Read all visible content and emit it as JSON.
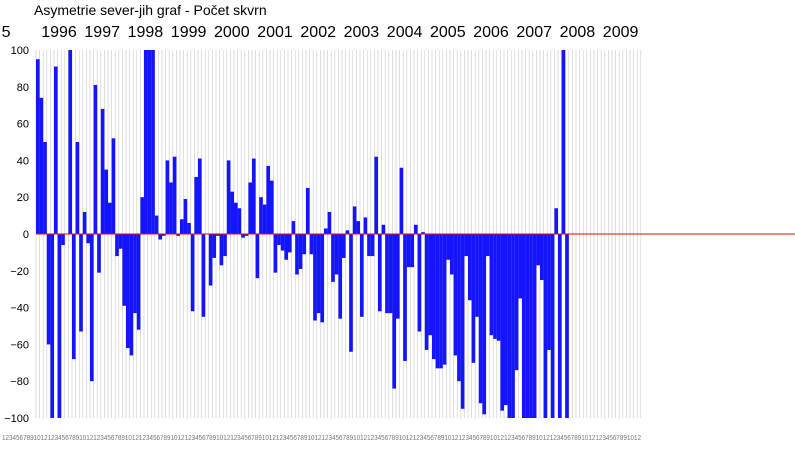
{
  "chart_data": {
    "type": "bar",
    "title": "Asymetrie  sever-jih   graf  -  Počet skvrn",
    "year_labels": [
      {
        "label": "5",
        "month_index": -9
      },
      {
        "label": "1996",
        "month_index": 2
      },
      {
        "label": "1997",
        "month_index": 14
      },
      {
        "label": "1998",
        "month_index": 26
      },
      {
        "label": "1999",
        "month_index": 38
      },
      {
        "label": "2000",
        "month_index": 50
      },
      {
        "label": "2001",
        "month_index": 62
      },
      {
        "label": "2002",
        "month_index": 74
      },
      {
        "label": "2003",
        "month_index": 86
      },
      {
        "label": "2004",
        "month_index": 98
      },
      {
        "label": "2005",
        "month_index": 110
      },
      {
        "label": "2006",
        "month_index": 122
      },
      {
        "label": "2007",
        "month_index": 134
      },
      {
        "label": "2008",
        "month_index": 146
      },
      {
        "label": "2009",
        "month_index": 158
      }
    ],
    "ylim": [
      -100,
      100
    ],
    "yticks": [
      100,
      80,
      60,
      40,
      20,
      0,
      -20,
      -40,
      -60,
      -80,
      -100
    ],
    "months_total": 168,
    "grid": "vertical per month",
    "month_tick_labels": "1 2 3 4 5 6 7 8 9 10 11 12 (repeated, overlapping)",
    "series": [
      {
        "values": [
          95,
          74,
          50,
          -60,
          -100,
          91,
          -100,
          -6,
          0,
          100,
          -68,
          50,
          -53,
          12,
          -5,
          -80,
          81,
          -21,
          68,
          35,
          17,
          52,
          -12,
          -8,
          -39,
          -62,
          -66,
          -43,
          -52,
          20,
          100,
          100,
          100,
          10,
          -3,
          -1,
          40,
          28,
          42,
          -1,
          8,
          19,
          6,
          -42,
          31,
          41,
          -45,
          0,
          -28,
          -13,
          -1,
          -17,
          -12,
          40,
          23,
          17,
          14,
          -2,
          -1,
          28,
          41,
          -24,
          20,
          16,
          37,
          29,
          -21,
          -6,
          -9,
          -14,
          -10,
          7,
          -22,
          -19,
          -11,
          25,
          -11,
          -47,
          -43,
          -48,
          3,
          12,
          -26,
          -22,
          -46,
          -13,
          2,
          -64,
          15,
          7,
          -45,
          9,
          -12,
          -12,
          42,
          -42,
          5,
          -43,
          -43,
          -84,
          -46,
          36,
          -69,
          -18,
          -18,
          5,
          -53,
          1,
          -63,
          -55,
          -68,
          -73,
          -73,
          -71,
          -14,
          -22,
          -66,
          -80,
          -95,
          -12,
          -36,
          -70,
          -45,
          -92,
          -98,
          -12,
          -55,
          -57,
          -58,
          -96,
          -93,
          -100,
          -100,
          -74,
          -35,
          -100,
          -100,
          -100,
          -100,
          -17,
          -25,
          -100,
          -63,
          -100,
          14,
          -100,
          100,
          -100
        ]
      }
    ],
    "colors": {
      "bar": "#1414ff",
      "zero_line": "#ff0000",
      "grid": "#c8c8c8",
      "axis": "#000000"
    }
  }
}
